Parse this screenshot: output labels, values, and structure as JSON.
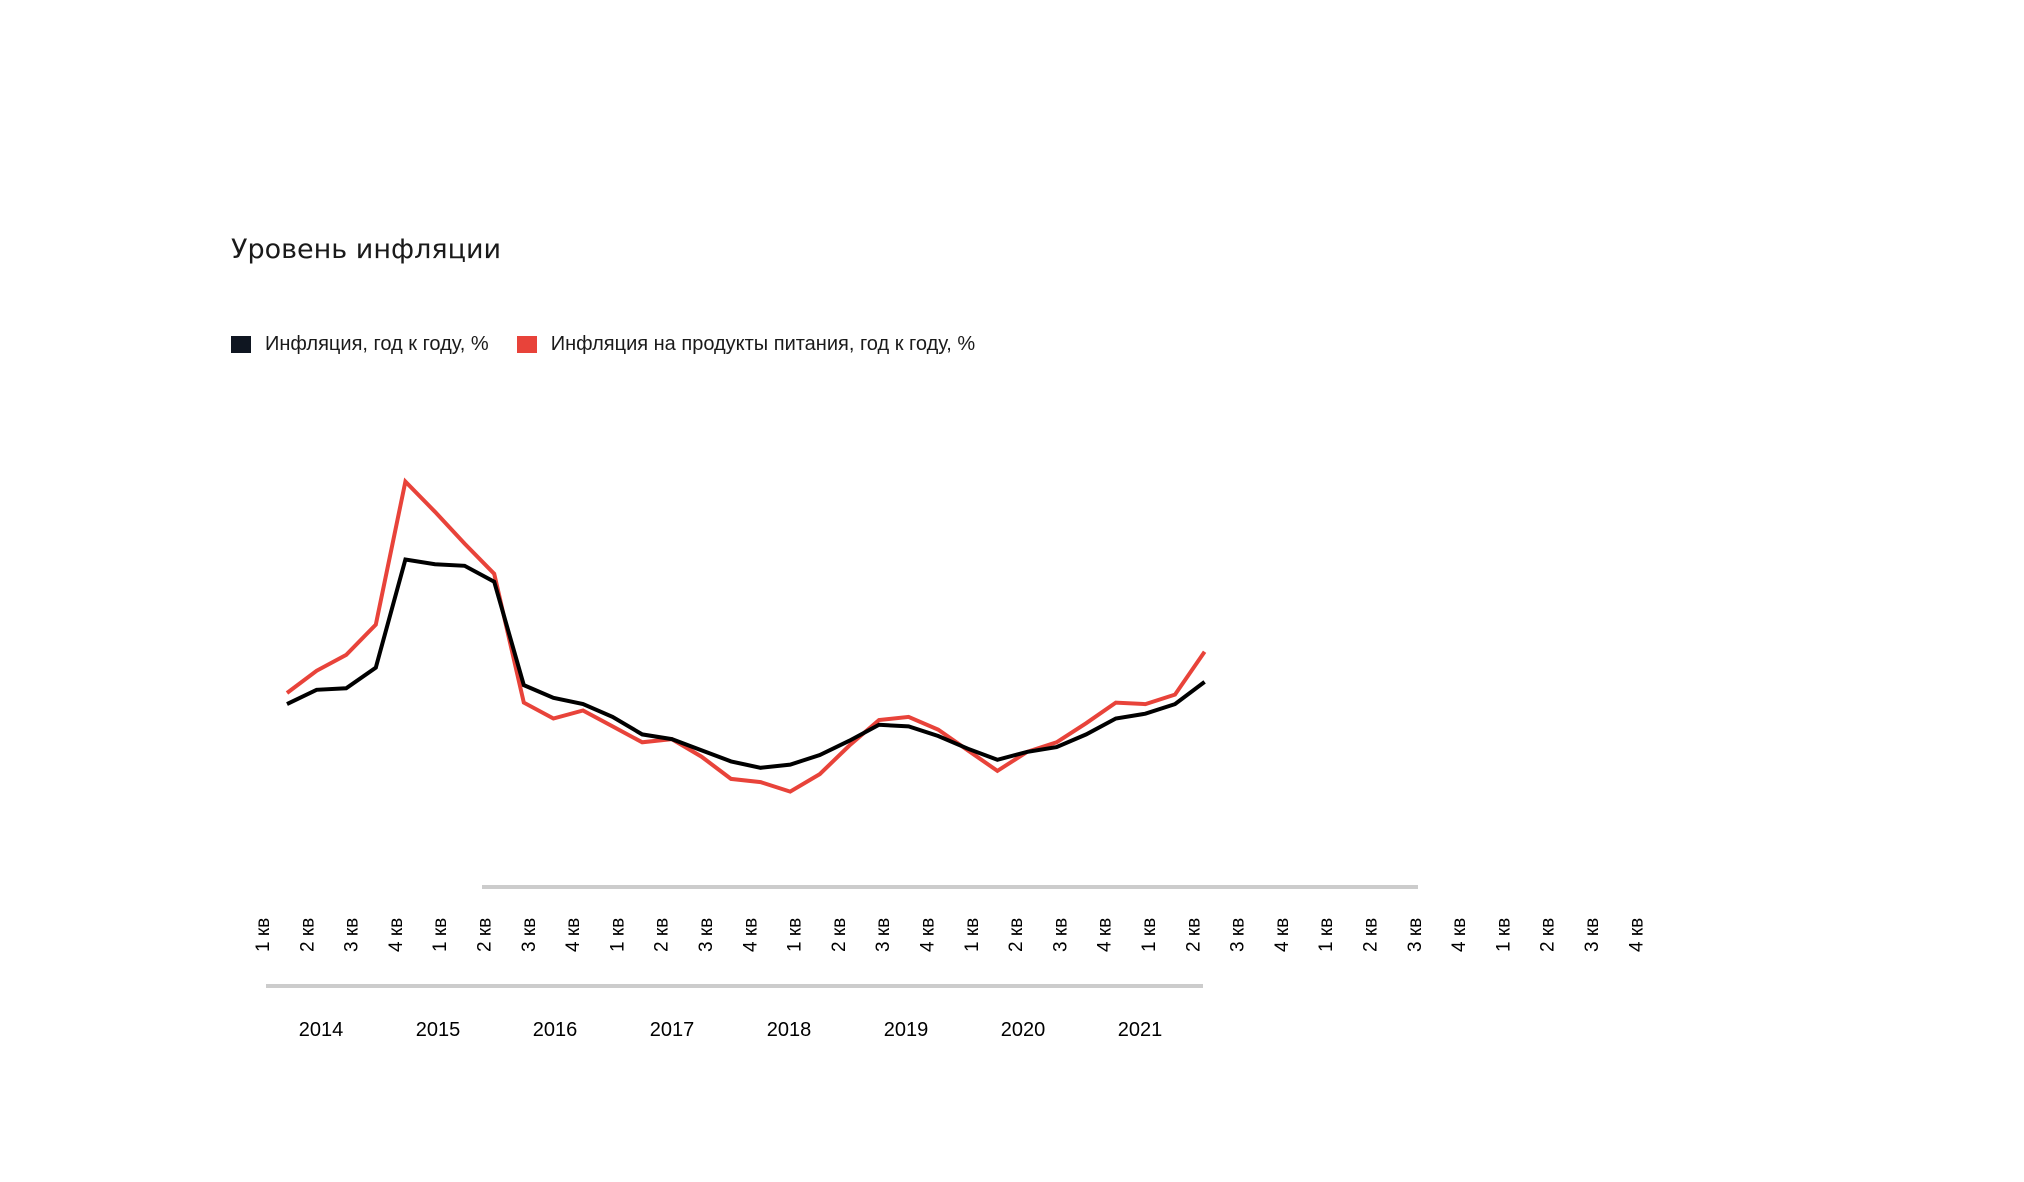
{
  "title": "Уровень инфляции",
  "colors": {
    "black_series": "#000000",
    "red_series": "#e8433a",
    "legend_black": "#0f1621",
    "axis_bar": "#cccccc"
  },
  "chart_data": {
    "type": "line",
    "title": "Уровень инфляции",
    "xlabel": "",
    "ylabel": "",
    "grid": false,
    "y_axis_visible": false,
    "legend_position": "top-left",
    "tick_labels": [
      "1 кв",
      "2 кв",
      "3 кв",
      "4 кв",
      "1 кв",
      "2 кв",
      "3 кв",
      "4 кв",
      "1 кв",
      "2 кв",
      "3 кв",
      "4 кв",
      "1 кв",
      "2 кв",
      "3 кв",
      "4 кв",
      "1 кв",
      "2 кв",
      "3 кв",
      "4 кв",
      "1 кв",
      "2 кв",
      "3 кв",
      "4 кв",
      "1 кв",
      "2 кв",
      "3 кв",
      "4 кв",
      "1 кв",
      "2 кв",
      "3 кв",
      "4 кв"
    ],
    "year_labels": [
      "2014",
      "2015",
      "2016",
      "2017",
      "2018",
      "2019",
      "2020",
      "2021"
    ],
    "series": [
      {
        "name": "Инфляция, год к году, %",
        "color": "#000000",
        "values": [
          6.5,
          7.4,
          7.5,
          8.8,
          15.6,
          15.3,
          15.2,
          14.2,
          7.7,
          6.9,
          6.5,
          5.7,
          4.6,
          4.3,
          3.6,
          2.9,
          2.5,
          2.7,
          3.3,
          4.2,
          5.2,
          5.1,
          4.5,
          3.7,
          3.0,
          3.5,
          3.8,
          4.6,
          5.6,
          5.9,
          6.5,
          7.9
        ]
      },
      {
        "name": "Инфляция на продукты питания, год к году, %",
        "color": "#e8433a",
        "values": [
          7.2,
          8.6,
          9.6,
          11.5,
          20.5,
          18.6,
          16.6,
          14.7,
          6.6,
          5.6,
          6.1,
          5.1,
          4.1,
          4.3,
          3.2,
          1.8,
          1.6,
          1.0,
          2.1,
          3.9,
          5.5,
          5.7,
          4.9,
          3.6,
          2.3,
          3.5,
          4.1,
          5.3,
          6.6,
          6.5,
          7.1,
          9.8
        ]
      }
    ]
  }
}
